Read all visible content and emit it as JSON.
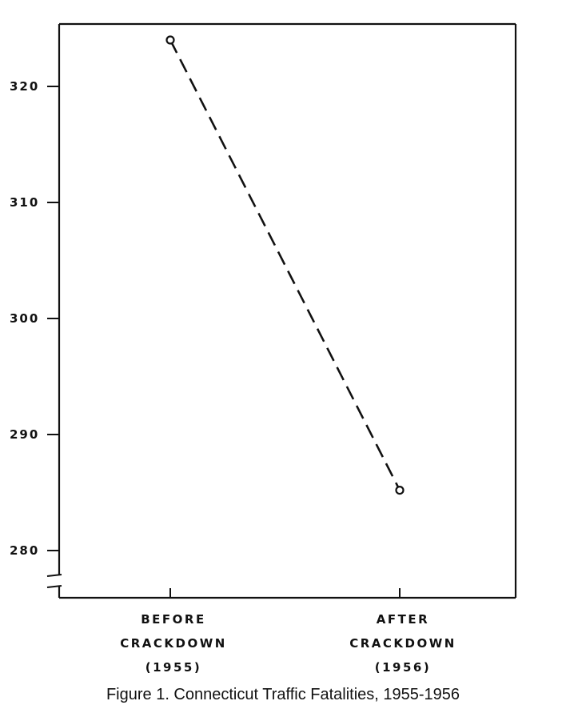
{
  "chart_data": {
    "type": "line",
    "caption": "Figure 1.   Connecticut Traffic Fatalities, 1955-1956",
    "categories": [
      [
        "BEFORE",
        "CRACKDOWN",
        "(1955)"
      ],
      [
        "AFTER",
        "CRACKDOWN",
        "(1956)"
      ]
    ],
    "series": [
      {
        "values": [
          324,
          285.2
        ],
        "line_style": "dashed",
        "marker": "open-circle"
      }
    ],
    "yticks": [
      280,
      290,
      300,
      310,
      320
    ],
    "ylim": [
      276,
      328
    ],
    "y_axis_break": true,
    "grid": false,
    "colors": {
      "ink": "#111111",
      "background": "#ffffff"
    }
  }
}
